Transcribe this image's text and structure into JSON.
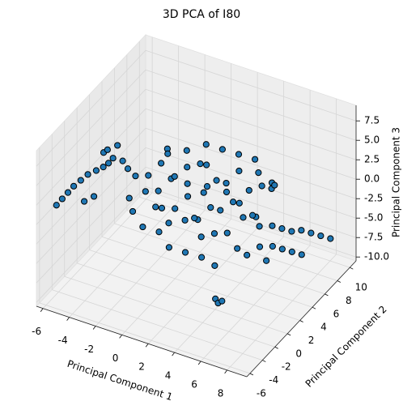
{
  "chart_data": {
    "type": "scatter3d",
    "title": "3D PCA of I80",
    "xlabel": "Principal Component 1",
    "ylabel": "Principal Component 2",
    "zlabel": "Principal Component 3",
    "color": "#1f77b4",
    "edgecolor": "#000000",
    "grid": true,
    "xlim": [
      -6.5,
      9.5
    ],
    "ylim": [
      -6.5,
      11
    ],
    "zlim": [
      -10.5,
      9.5
    ],
    "xticks": [
      -6,
      -4,
      -2,
      0,
      2,
      4,
      6,
      8
    ],
    "yticks": [
      -6,
      -4,
      -2,
      0,
      2,
      4,
      6,
      8,
      10
    ],
    "zticks": [
      {
        "value": -10,
        "label": "-10.0"
      },
      -7.5,
      {
        "value": -5,
        "label": "-5.0"
      },
      -2.5,
      {
        "value": 0,
        "label": "0.0"
      },
      2.5,
      {
        "value": 5,
        "label": "5.0"
      },
      7.5
    ],
    "x": [
      -6.2,
      -6,
      -5.8,
      -5.5,
      -5.2,
      -4.8,
      -4.5,
      -4.2,
      -4,
      -3.5,
      -3.2,
      -5,
      -4.5,
      -6.4,
      -3.8,
      -3,
      -2.5,
      -2,
      -2,
      -1.5,
      -1,
      -1,
      -0.5,
      0,
      0,
      0.5,
      0.5,
      1,
      1,
      1.5,
      1.5,
      2,
      2,
      2.5,
      2.5,
      3,
      3,
      3.5,
      3.5,
      4,
      4,
      4.5,
      4.5,
      -2.5,
      -1.5,
      -0.5,
      0.5,
      1.5,
      2.5,
      3.5,
      -3,
      -1,
      0,
      1,
      2,
      3,
      -2,
      1,
      2,
      0,
      -1,
      3,
      4,
      1.5,
      2.5,
      -0.5,
      0.5,
      -1.5,
      3.5,
      4.5,
      5,
      5.5,
      5.5,
      6,
      6,
      6.5,
      6.5,
      7,
      7,
      7.5,
      7.5,
      8,
      8.5,
      5,
      6,
      4.5,
      4.8,
      5,
      5,
      5.2,
      -4,
      -3.8
    ],
    "y": [
      -3,
      -2.5,
      -2,
      -1.5,
      -1,
      -0.5,
      0,
      0.2,
      0.5,
      1,
      1.2,
      -2,
      -1.5,
      -3.5,
      0.8,
      2,
      3,
      1.5,
      4,
      2.5,
      3.5,
      1,
      5,
      2,
      4,
      3,
      6,
      1.5,
      4.5,
      5.5,
      2.5,
      3.5,
      6,
      4,
      7,
      2,
      5,
      6.5,
      3,
      4.5,
      7.5,
      5.5,
      2.5,
      0.5,
      0,
      0.5,
      0,
      0.5,
      1,
      1,
      1,
      6,
      7,
      7.5,
      8,
      8.5,
      5,
      3,
      2,
      1,
      2,
      6,
      6,
      4,
      5,
      3,
      5,
      4,
      8,
      8,
      5,
      6,
      4,
      6.5,
      5,
      7,
      5.5,
      7.5,
      6,
      8,
      6.5,
      8.5,
      9,
      3,
      4,
      -1,
      -1.2,
      -1,
      7,
      7,
      -1,
      -0.8
    ],
    "z": [
      0.5,
      1,
      1.5,
      2,
      2.5,
      2.8,
      3,
      3.5,
      4,
      3.5,
      2.5,
      0,
      0.5,
      0,
      5.5,
      1,
      0.5,
      0,
      1.5,
      -0.5,
      0.5,
      -1,
      1,
      -1.5,
      0,
      -0.5,
      1,
      -2,
      -1,
      0,
      -2.5,
      -1.5,
      -0.5,
      -2,
      0.5,
      -3,
      -1.5,
      -1,
      -3.5,
      -2.5,
      -1,
      -3,
      -4.5,
      -2,
      -3,
      -3.5,
      -4.5,
      -5,
      -5.5,
      -6,
      -1,
      2,
      2.5,
      2,
      1.5,
      1,
      2.5,
      -3,
      -4,
      -2.5,
      -2,
      -2.5,
      -3.5,
      0.5,
      -0.5,
      1.5,
      2,
      3,
      0,
      -1.5,
      -3.5,
      -4,
      -5,
      -4.5,
      -5.5,
      -5,
      -6,
      -5,
      -6.5,
      -5.5,
      -7,
      -6,
      -6.5,
      -5.5,
      -6.5,
      -8,
      -8.2,
      -8,
      0.4,
      0.2,
      6,
      6.3
    ]
  }
}
